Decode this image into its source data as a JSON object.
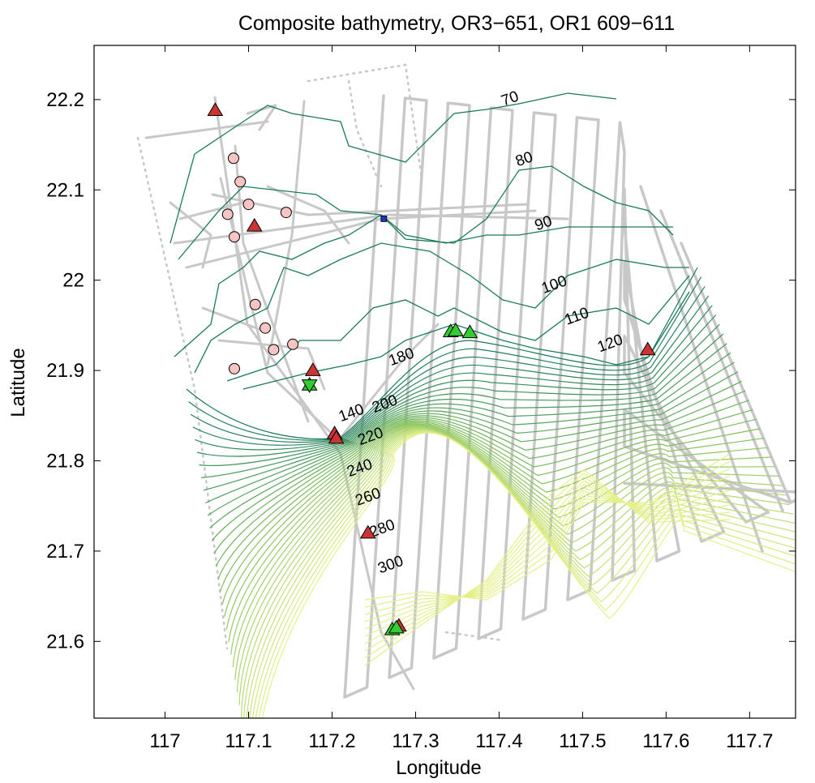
{
  "chart_data": {
    "type": "line",
    "title": "Composite bathymetry, OR3−651, OR1 609−611",
    "xlabel": "Longitude",
    "ylabel": "Latitude",
    "xlim": [
      116.915,
      117.755
    ],
    "ylim": [
      21.515,
      22.26
    ],
    "x_ticks": [
      {
        "value": 117.0,
        "label": "117"
      },
      {
        "value": 117.1,
        "label": "117.1"
      },
      {
        "value": 117.2,
        "label": "117.2"
      },
      {
        "value": 117.3,
        "label": "117.3"
      },
      {
        "value": 117.4,
        "label": "117.4"
      },
      {
        "value": 117.5,
        "label": "117.5"
      },
      {
        "value": 117.6,
        "label": "117.6"
      },
      {
        "value": 117.7,
        "label": "117.7"
      }
    ],
    "y_ticks": [
      {
        "value": 21.6,
        "label": "21.6"
      },
      {
        "value": 21.7,
        "label": "21.7"
      },
      {
        "value": 21.8,
        "label": "21.8"
      },
      {
        "value": 21.9,
        "label": "21.9"
      },
      {
        "value": 22.0,
        "label": "22"
      },
      {
        "value": 22.1,
        "label": "22.1"
      },
      {
        "value": 22.2,
        "label": "22.2"
      }
    ],
    "grid": false,
    "colors": {
      "shallow_contour": "#1a7a5e",
      "mid_contour": "#7fbf5a",
      "deep_contour": "#e6f08a",
      "track": "#c8c8c8",
      "red_marker": "#cc3333",
      "green_marker": "#33cc33",
      "pink_marker": "#f7c4c4",
      "blue_marker": "#2233bb"
    },
    "contour_labels": [
      {
        "text": "70",
        "x": 117.415,
        "y": 22.196
      },
      {
        "text": "80",
        "x": 117.432,
        "y": 22.129
      },
      {
        "text": "90",
        "x": 117.455,
        "y": 22.058
      },
      {
        "text": "100",
        "x": 117.468,
        "y": 21.99
      },
      {
        "text": "110",
        "x": 117.495,
        "y": 21.955
      },
      {
        "text": "120",
        "x": 117.535,
        "y": 21.925
      },
      {
        "text": "140",
        "x": 117.225,
        "y": 21.848
      },
      {
        "text": "180",
        "x": 117.285,
        "y": 21.91
      },
      {
        "text": "200",
        "x": 117.265,
        "y": 21.858
      },
      {
        "text": "220",
        "x": 117.248,
        "y": 21.822
      },
      {
        "text": "240",
        "x": 117.235,
        "y": 21.787
      },
      {
        "text": "260",
        "x": 117.245,
        "y": 21.755
      },
      {
        "text": "280",
        "x": 117.262,
        "y": 21.72
      },
      {
        "text": "300",
        "x": 117.272,
        "y": 21.68
      }
    ],
    "red_triangles": [
      {
        "x": 117.06,
        "y": 22.188
      },
      {
        "x": 117.107,
        "y": 22.06
      },
      {
        "x": 117.177,
        "y": 21.9
      },
      {
        "x": 117.203,
        "y": 21.83
      },
      {
        "x": 117.205,
        "y": 21.825
      },
      {
        "x": 117.243,
        "y": 21.72
      },
      {
        "x": 117.28,
        "y": 21.617
      },
      {
        "x": 117.578,
        "y": 21.923
      }
    ],
    "green_triangles": [
      {
        "x": 117.342,
        "y": 21.943
      },
      {
        "x": 117.348,
        "y": 21.944
      },
      {
        "x": 117.365,
        "y": 21.942
      },
      {
        "x": 117.272,
        "y": 21.613
      },
      {
        "x": 117.277,
        "y": 21.615
      }
    ],
    "green_star": {
      "x": 117.173,
      "y": 21.884
    },
    "pink_circles": [
      {
        "x": 117.082,
        "y": 22.135
      },
      {
        "x": 117.09,
        "y": 22.109
      },
      {
        "x": 117.1,
        "y": 22.084
      },
      {
        "x": 117.075,
        "y": 22.073
      },
      {
        "x": 117.083,
        "y": 22.048
      },
      {
        "x": 117.145,
        "y": 22.075
      },
      {
        "x": 117.108,
        "y": 21.973
      },
      {
        "x": 117.12,
        "y": 21.947
      },
      {
        "x": 117.13,
        "y": 21.923
      },
      {
        "x": 117.153,
        "y": 21.929
      },
      {
        "x": 117.083,
        "y": 21.902
      }
    ],
    "blue_square": {
      "x": 117.262,
      "y": 22.068
    }
  }
}
